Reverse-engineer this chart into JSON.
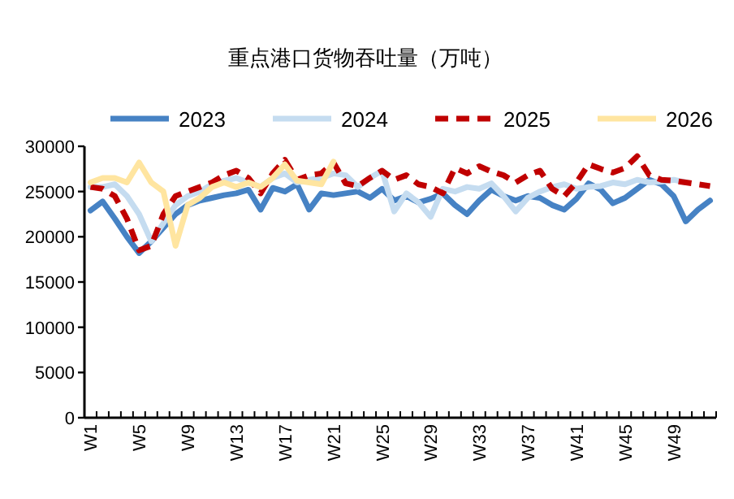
{
  "chart_data": {
    "type": "line",
    "title": "重点港口货物吞吐量（万吨）",
    "legend": "top",
    "grid": false,
    "marker": "none",
    "categories": [
      "W1",
      null,
      null,
      null,
      "W5",
      null,
      null,
      null,
      "W9",
      null,
      null,
      null,
      "W13",
      null,
      null,
      null,
      "W17",
      null,
      null,
      null,
      "W21",
      null,
      null,
      null,
      "W25",
      null,
      null,
      null,
      "W29",
      null,
      null,
      null,
      "W33",
      null,
      null,
      null,
      "W37",
      null,
      null,
      null,
      "W41",
      null,
      null,
      null,
      "W45",
      null,
      null,
      null,
      "W49",
      null,
      null,
      null
    ],
    "ylim": [
      0,
      30000
    ],
    "yticks": [
      0,
      5000,
      10000,
      15000,
      20000,
      25000,
      30000
    ],
    "series": [
      {
        "name": "2023",
        "color": "#4682c4",
        "line_style": "solid",
        "values": [
          22900,
          23900,
          22000,
          20000,
          18200,
          19500,
          21000,
          22500,
          23500,
          24000,
          24300,
          24600,
          24800,
          25200,
          23000,
          25400,
          25000,
          25800,
          23000,
          24800,
          24600,
          24800,
          25000,
          24300,
          25300,
          24000,
          24500,
          23800,
          24200,
          24800,
          23500,
          22500,
          24000,
          25200,
          24500,
          24000,
          24500,
          24300,
          23500,
          23000,
          24200,
          25900,
          25200,
          23700,
          24300,
          25300,
          26300,
          25800,
          24500,
          21700,
          23000,
          24000
        ]
      },
      {
        "name": "2024",
        "color": "#c5dcf0",
        "line_style": "solid",
        "values": [
          25500,
          25500,
          25800,
          24500,
          22500,
          19500,
          21500,
          23500,
          24500,
          25000,
          25800,
          26200,
          26500,
          26000,
          25500,
          26500,
          27000,
          26000,
          26300,
          26500,
          27000,
          26800,
          25500,
          26500,
          27300,
          22800,
          24800,
          23800,
          22200,
          25300,
          25000,
          25500,
          25300,
          25900,
          24500,
          22800,
          24300,
          25000,
          25500,
          25800,
          25300,
          25500,
          25600,
          26000,
          25800,
          26300,
          26000,
          26100,
          26300,
          26000,
          null,
          null
        ]
      },
      {
        "name": "2025",
        "color": "#c00000",
        "line_style": "dashed",
        "values": [
          25500,
          25300,
          24500,
          22000,
          18500,
          19000,
          22500,
          24500,
          25000,
          25500,
          26000,
          26800,
          27300,
          26500,
          24800,
          27000,
          28500,
          26300,
          26800,
          27000,
          28200,
          25900,
          25600,
          26500,
          27300,
          26300,
          26800,
          25800,
          25500,
          24800,
          27600,
          27000,
          27800,
          27200,
          26800,
          26000,
          26800,
          27300,
          25300,
          24500,
          26000,
          28000,
          27500,
          27100,
          27600,
          28900,
          26800,
          26300,
          26200,
          26000,
          25800,
          25600
        ]
      },
      {
        "name": "2026",
        "color": "#ffe5a0",
        "line_style": "solid",
        "values": [
          26000,
          26500,
          26500,
          26000,
          28200,
          26000,
          25000,
          19000,
          23500,
          24300,
          25500,
          26000,
          25500,
          26000,
          25500,
          26500,
          28000,
          26200,
          26000,
          25800,
          28300,
          null,
          null,
          null,
          null,
          null,
          null,
          null,
          null,
          null,
          null,
          null,
          null,
          null,
          null,
          null,
          null,
          null,
          null,
          null,
          null,
          null,
          null,
          null,
          null,
          null,
          null,
          null,
          null,
          null,
          null,
          null
        ]
      }
    ]
  }
}
